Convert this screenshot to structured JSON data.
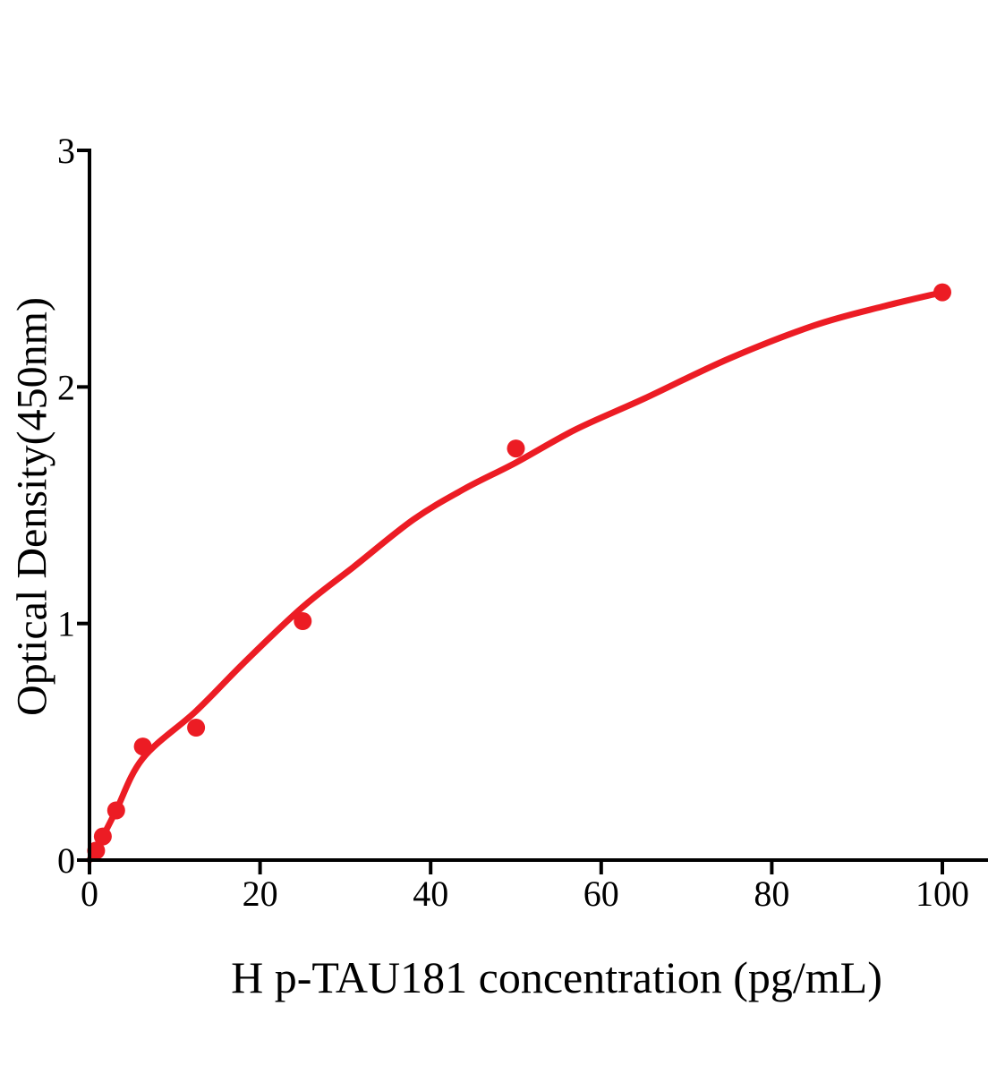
{
  "figure": {
    "background_color": "#ffffff",
    "text_color": "#000000"
  },
  "chart_data": {
    "type": "scatter",
    "title": "",
    "xlabel": "H p-TAU181 concentration (pg/mL)",
    "ylabel": "Optical Density(450nm)",
    "xlim": [
      0,
      105.4
    ],
    "ylim": [
      0,
      3
    ],
    "x_ticks": [
      0,
      20,
      40,
      60,
      80,
      100
    ],
    "y_ticks": [
      0,
      1,
      2,
      3
    ],
    "grid": false,
    "legend_position": "none",
    "point_color": "#ec1c24",
    "curve_color": "#ec1c24",
    "axis_color": "#000000",
    "series": [
      {
        "name": "standard-points",
        "type": "scatter",
        "points": [
          [
            0.78,
            0.04
          ],
          [
            1.56,
            0.1
          ],
          [
            3.13,
            0.21
          ],
          [
            6.25,
            0.48
          ],
          [
            12.5,
            0.56
          ],
          [
            25,
            1.01
          ],
          [
            50,
            1.74
          ],
          [
            100,
            2.4
          ]
        ]
      },
      {
        "name": "fitted-curve",
        "type": "line",
        "points": [
          [
            0,
            0
          ],
          [
            1.56,
            0.1
          ],
          [
            3.13,
            0.21
          ],
          [
            6.25,
            0.43
          ],
          [
            12.5,
            0.63
          ],
          [
            18,
            0.83
          ],
          [
            25,
            1.07
          ],
          [
            31,
            1.24
          ],
          [
            38,
            1.44
          ],
          [
            44,
            1.57
          ],
          [
            50,
            1.68
          ],
          [
            57,
            1.82
          ],
          [
            65,
            1.95
          ],
          [
            75,
            2.12
          ],
          [
            85,
            2.26
          ],
          [
            93,
            2.34
          ],
          [
            100,
            2.4
          ]
        ]
      }
    ]
  }
}
